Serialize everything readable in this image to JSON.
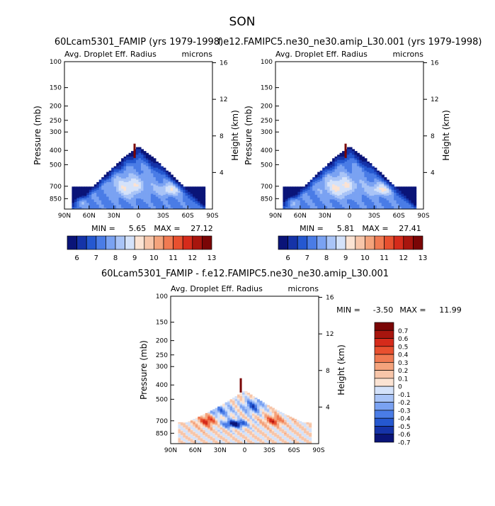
{
  "page_title": "SON",
  "colors": {
    "blues": [
      "#0a1478",
      "#1533a8",
      "#2558d0",
      "#4a7ce6",
      "#7aa2f2",
      "#a9c4f7",
      "#d4e2fa"
    ],
    "reds": [
      "#fbe3d3",
      "#f7c5a9",
      "#f4a37c",
      "#f07a52",
      "#e8502f",
      "#d52b1b",
      "#a8150e",
      "#7a0606"
    ],
    "neutral": "#f5f0eb"
  },
  "chart_data": [
    {
      "type": "heatmap",
      "title": "60Lcam5301_FAMIP (yrs 1979-1998)",
      "subtitle_left": "Avg. Droplet Eff. Radius",
      "subtitle_right": "microns",
      "xlabel": "",
      "ylabel": "Pressure (mb)",
      "ylabel_right": "Height (km)",
      "x_ticks": [
        "90N",
        "60N",
        "30N",
        "0",
        "30S",
        "60S",
        "90S"
      ],
      "y_ticks": [
        "100",
        "150",
        "200",
        "250",
        "300",
        "400",
        "500",
        "700",
        "850"
      ],
      "y_ticks_right": [
        "16",
        "12",
        "8",
        "4"
      ],
      "min_label": "MIN =",
      "min_value": "5.65",
      "max_label": "MAX =",
      "max_value": "27.12",
      "colorbar_ticks": [
        "6",
        "7",
        "8",
        "9",
        "10",
        "11",
        "12",
        "13"
      ]
    },
    {
      "type": "heatmap",
      "title": "f.e12.FAMIPC5.ne30_ne30.amip_L30.001 (yrs 1979-1998)",
      "subtitle_left": "Avg. Droplet Eff. Radius",
      "subtitle_right": "microns",
      "xlabel": "",
      "ylabel": "Pressure (mb)",
      "ylabel_right": "Height (km)",
      "x_ticks": [
        "90N",
        "60N",
        "30N",
        "0",
        "30S",
        "60S",
        "90S"
      ],
      "y_ticks": [
        "100",
        "150",
        "200",
        "250",
        "300",
        "400",
        "500",
        "700",
        "850"
      ],
      "y_ticks_right": [
        "16",
        "12",
        "8",
        "4"
      ],
      "min_label": "MIN =",
      "min_value": "5.81",
      "max_label": "MAX =",
      "max_value": "27.41",
      "colorbar_ticks": [
        "6",
        "7",
        "8",
        "9",
        "10",
        "11",
        "12",
        "13"
      ]
    },
    {
      "type": "heatmap",
      "title": "60Lcam5301_FAMIP - f.e12.FAMIPC5.ne30_ne30.amip_L30.001",
      "subtitle_left": "Avg. Droplet Eff. Radius",
      "subtitle_right": "microns",
      "xlabel": "",
      "ylabel": "Pressure (mb)",
      "ylabel_right": "Height (km)",
      "x_ticks": [
        "90N",
        "60N",
        "30N",
        "0",
        "30S",
        "60S",
        "90S"
      ],
      "y_ticks": [
        "100",
        "150",
        "200",
        "250",
        "300",
        "400",
        "500",
        "700",
        "850"
      ],
      "y_ticks_right": [
        "16",
        "12",
        "8",
        "4"
      ],
      "min_label": "MIN =",
      "min_value": "-3.50",
      "max_label": "MAX =",
      "max_value": "11.99",
      "colorbar_ticks": [
        "0.7",
        "0.6",
        "0.5",
        "0.4",
        "0.3",
        "0.2",
        "0.1",
        "0",
        "-0.1",
        "-0.2",
        "-0.3",
        "-0.4",
        "-0.5",
        "-0.6",
        "-0.7"
      ]
    }
  ]
}
